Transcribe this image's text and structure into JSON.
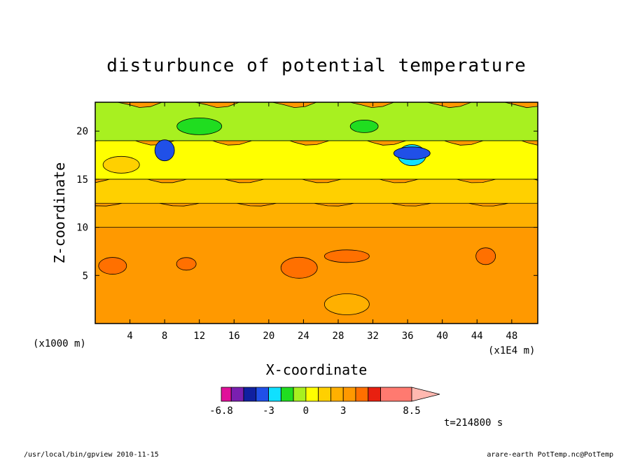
{
  "chart_data": {
    "type": "heatmap",
    "title": "disturbunce of potential temperature",
    "xlabel": "X-coordinate",
    "ylabel": "Z-coordinate",
    "x_unit_left": "(x1000 m)",
    "x_unit_right": "(x1E4 m)",
    "xlim": [
      0,
      51
    ],
    "ylim": [
      0,
      23
    ],
    "x_ticks": [
      "4",
      "8",
      "12",
      "16",
      "20",
      "24",
      "28",
      "32",
      "36",
      "40",
      "44",
      "48"
    ],
    "y_ticks": [
      "5",
      "10",
      "15",
      "20"
    ],
    "x_tick_values": [
      4,
      8,
      12,
      16,
      20,
      24,
      28,
      32,
      36,
      40,
      44,
      48
    ],
    "y_tick_values": [
      5,
      10,
      15,
      20
    ],
    "time_label": "t=214800 s",
    "colorbar": {
      "labels": [
        "-6.8",
        "-3",
        "0",
        "3",
        "8.5"
      ],
      "label_values": [
        -6.8,
        -3,
        0,
        3,
        8.5
      ],
      "levels": [
        -6.8,
        -6,
        -5,
        -4,
        -3,
        -2,
        -1,
        0,
        1,
        2,
        3,
        4,
        5,
        6,
        8.5
      ],
      "colors": [
        "#e0109a",
        "#7a1fb0",
        "#1020a0",
        "#2050e8",
        "#10e0ff",
        "#20dd20",
        "#a8f020",
        "#ffff00",
        "#ffd000",
        "#ffb000",
        "#ff9900",
        "#ff7000",
        "#e82010",
        "#ff7a70"
      ],
      "overflow_color": "#ffb8b0",
      "min": -6.8,
      "max": 8.5,
      "extend": "max"
    },
    "layers": [
      {
        "z_bottom": 0,
        "z_top": 10,
        "value": 3.5
      },
      {
        "z_bottom": 10,
        "z_top": 12.5,
        "value": 2.5
      },
      {
        "z_bottom": 12.5,
        "z_top": 15,
        "value": 1.5
      },
      {
        "z_bottom": 15,
        "z_top": 19,
        "value": 0.5
      },
      {
        "z_bottom": 19,
        "z_top": 23,
        "value": -0.5
      }
    ],
    "features": [
      {
        "x": 10.5,
        "z": 6.2,
        "value": 4.5
      },
      {
        "x": 2.0,
        "z": 6.0,
        "value": 4.5
      },
      {
        "x": 23.5,
        "z": 5.8,
        "value": 4.5
      },
      {
        "x": 29.0,
        "z": 7.0,
        "value": 4.5
      },
      {
        "x": 45.0,
        "z": 7.0,
        "value": 4.5
      },
      {
        "x": 36.5,
        "z": 17.5,
        "value": -2.5
      },
      {
        "x": 36.5,
        "z": 17.7,
        "value": -3.5
      },
      {
        "x": 12.0,
        "z": 20.5,
        "value": -1.5
      },
      {
        "x": 8.0,
        "z": 18.0,
        "value": -3.5
      },
      {
        "x": 31.0,
        "z": 20.5,
        "value": -1.5
      },
      {
        "x": 3.0,
        "z": 16.5,
        "value": 1.5
      },
      {
        "x": 29.0,
        "z": 2.0,
        "value": 2.5
      }
    ]
  },
  "footer": {
    "left": "/usr/local/bin/gpview   2010-11-15",
    "right": "arare-earth_PotTemp.nc@PotTemp"
  }
}
